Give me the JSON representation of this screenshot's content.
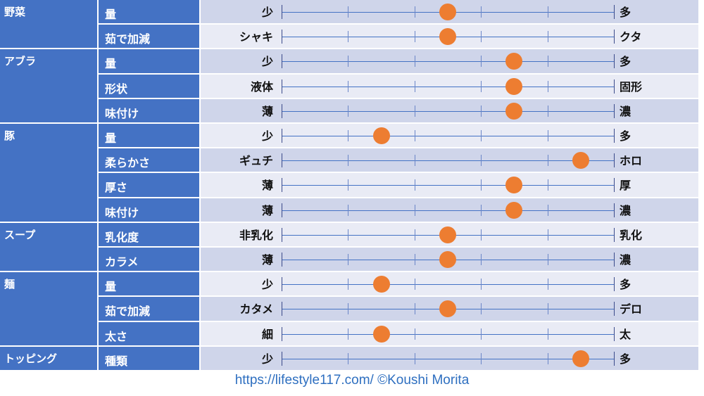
{
  "chart_data": {
    "type": "dot-scale",
    "scale": {
      "min": 0,
      "max": 5,
      "ticks": [
        0,
        1,
        2,
        3,
        4,
        5
      ]
    },
    "colors": {
      "header": "#4472c4",
      "row_dark": "#cfd5ea",
      "row_light": "#e9ebf5",
      "dot": "#ed7d31",
      "footer": "#2e6fc0"
    },
    "groups": [
      {
        "category": "野菜",
        "items": [
          {
            "attribute": "量",
            "left": "少",
            "right": "多",
            "value": 2.5
          },
          {
            "attribute": "茹で加減",
            "left": "シャキ",
            "right": "クタ",
            "value": 2.5
          }
        ]
      },
      {
        "category": "アブラ",
        "items": [
          {
            "attribute": "量",
            "left": "少",
            "right": "多",
            "value": 3.5
          },
          {
            "attribute": "形状",
            "left": "液体",
            "right": "固形",
            "value": 3.5
          },
          {
            "attribute": "味付け",
            "left": "薄",
            "right": "濃",
            "value": 3.5
          }
        ]
      },
      {
        "category": "豚",
        "items": [
          {
            "attribute": "量",
            "left": "少",
            "right": "多",
            "value": 1.5
          },
          {
            "attribute": "柔らかさ",
            "left": "ギュチ",
            "right": "ホロ",
            "value": 4.5
          },
          {
            "attribute": "厚さ",
            "left": "薄",
            "right": "厚",
            "value": 3.5
          },
          {
            "attribute": "味付け",
            "left": "薄",
            "right": "濃",
            "value": 3.5
          }
        ]
      },
      {
        "category": "スープ",
        "items": [
          {
            "attribute": "乳化度",
            "left": "非乳化",
            "right": "乳化",
            "value": 2.5
          },
          {
            "attribute": "カラメ",
            "left": "薄",
            "right": "濃",
            "value": 2.5
          }
        ]
      },
      {
        "category": "麺",
        "items": [
          {
            "attribute": "量",
            "left": "少",
            "right": "多",
            "value": 1.5
          },
          {
            "attribute": "茹で加減",
            "left": "カタメ",
            "right": "デロ",
            "value": 2.5
          },
          {
            "attribute": "太さ",
            "left": "細",
            "right": "太",
            "value": 1.5
          }
        ]
      },
      {
        "category": "トッピング",
        "items": [
          {
            "attribute": "種類",
            "left": "少",
            "right": "多",
            "value": 4.5
          }
        ]
      }
    ]
  },
  "footer": {
    "text": "https://lifestyle117.com/  ©Koushi Morita"
  }
}
